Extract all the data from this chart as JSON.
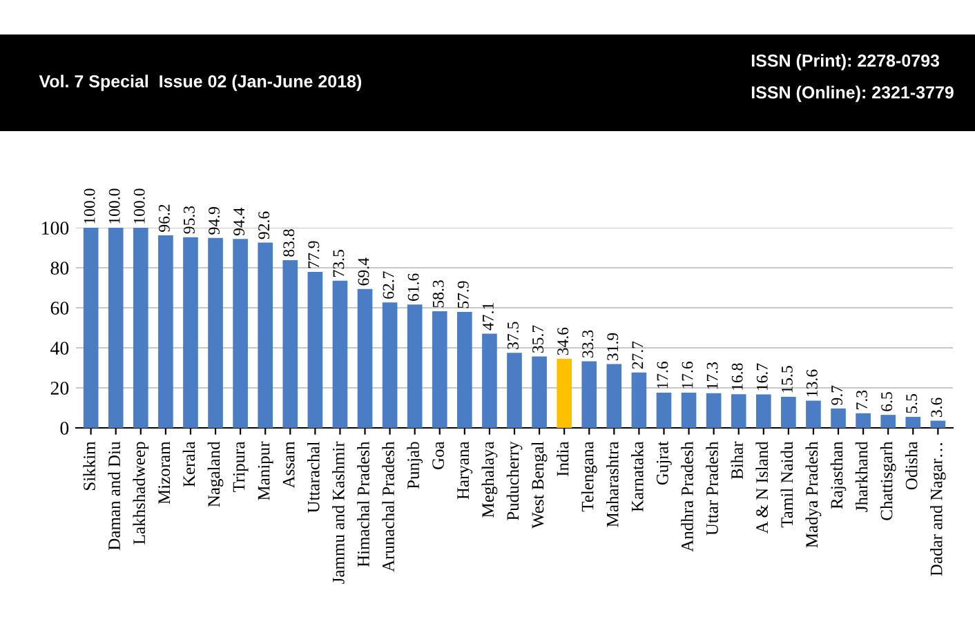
{
  "chart_data": {
    "type": "bar",
    "categories": [
      "Sikkim",
      "Daman and Diu",
      "Lakhshadweep",
      "Mizoram",
      "Kerala",
      "Nagaland",
      "Tripura",
      "Manipur",
      "Assam",
      "Uttarachal",
      "Jammu and Kashmir",
      "Himachal Pradesh",
      "Arunachal Pradesh",
      "Punjab",
      "Goa",
      "Haryana",
      "Meghalaya",
      "Puducherry",
      "West Bengal",
      "India",
      "Telengana",
      "Maharashtra",
      "Karnataka",
      "Gujrat",
      "Andhra Pradesh",
      "Uttar Pradesh",
      "Bihar",
      "A & N Island",
      "Tamil Naidu",
      "Madya Pradesh",
      "Rajasthan",
      "Jharkhand",
      "Chattisgarh",
      "Odisha",
      "Dadar and Nagar…"
    ],
    "values": [
      100.0,
      100.0,
      100.0,
      96.2,
      95.3,
      94.9,
      94.4,
      92.6,
      83.8,
      77.9,
      73.5,
      69.4,
      62.7,
      61.6,
      58.3,
      57.9,
      47.1,
      37.5,
      35.7,
      34.6,
      33.3,
      31.9,
      27.7,
      17.6,
      17.6,
      17.3,
      16.8,
      16.7,
      15.5,
      13.6,
      9.7,
      7.3,
      6.5,
      5.5,
      3.6
    ],
    "colors": [
      "#4a7dc4",
      "#4a7dc4",
      "#4a7dc4",
      "#4a7dc4",
      "#4a7dc4",
      "#4a7dc4",
      "#4a7dc4",
      "#4a7dc4",
      "#4a7dc4",
      "#4a7dc4",
      "#4a7dc4",
      "#4a7dc4",
      "#4a7dc4",
      "#4a7dc4",
      "#4a7dc4",
      "#4a7dc4",
      "#4a7dc4",
      "#4a7dc4",
      "#4a7dc4",
      "#ffc000",
      "#4a7dc4",
      "#4a7dc4",
      "#4a7dc4",
      "#4a7dc4",
      "#4a7dc4",
      "#4a7dc4",
      "#4a7dc4",
      "#4a7dc4",
      "#4a7dc4",
      "#4a7dc4",
      "#4a7dc4",
      "#4a7dc4",
      "#4a7dc4",
      "#4a7dc4",
      "#4a7dc4"
    ],
    "value_labels": [
      "100.0",
      "100.0",
      "100.0",
      "96.2",
      "95.3",
      "94.9",
      "94.4",
      "92.6",
      "83.8",
      "77.9",
      "73.5",
      "69.4",
      "62.7",
      "61.6",
      "58.3",
      "57.9",
      "47.1",
      "37.5",
      "35.7",
      "34.6",
      "33.3",
      "31.9",
      "27.7",
      "17.6",
      "17.6",
      "17.3",
      "16.8",
      "16.7",
      "15.5",
      "13.6",
      "9.7",
      "7.3",
      "6.5",
      "5.5",
      "3.6"
    ],
    "ylim": [
      0,
      100
    ],
    "yticks": [
      0,
      20,
      40,
      60,
      80,
      100
    ],
    "grid": "y",
    "annotations": [
      "Vol. 7 Special  Issue 02 (Jan-June 2018)",
      "ISSN (Print): 2278-0793",
      "ISSN (Online): 2321-3779"
    ]
  }
}
